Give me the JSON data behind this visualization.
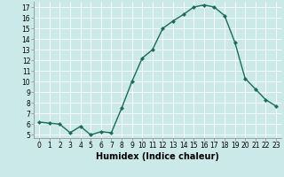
{
  "x": [
    0,
    1,
    2,
    3,
    4,
    5,
    6,
    7,
    8,
    9,
    10,
    11,
    12,
    13,
    14,
    15,
    16,
    17,
    18,
    19,
    20,
    21,
    22,
    23
  ],
  "y": [
    6.2,
    6.1,
    6.0,
    5.2,
    5.8,
    5.0,
    5.3,
    5.2,
    7.5,
    10.0,
    12.2,
    13.0,
    15.0,
    15.7,
    16.3,
    17.0,
    17.2,
    17.0,
    16.2,
    13.7,
    10.3,
    9.3,
    8.3,
    7.7
  ],
  "line_color": "#1a6b5a",
  "marker": "D",
  "marker_size": 2.0,
  "bg_color": "#cce9e9",
  "grid_color": "#ffffff",
  "xlabel": "Humidex (Indice chaleur)",
  "xlim": [
    -0.5,
    23.5
  ],
  "ylim": [
    4.7,
    17.5
  ],
  "yticks": [
    5,
    6,
    7,
    8,
    9,
    10,
    11,
    12,
    13,
    14,
    15,
    16,
    17
  ],
  "xticks": [
    0,
    1,
    2,
    3,
    4,
    5,
    6,
    7,
    8,
    9,
    10,
    11,
    12,
    13,
    14,
    15,
    16,
    17,
    18,
    19,
    20,
    21,
    22,
    23
  ],
  "tick_fontsize": 5.5,
  "xlabel_fontsize": 7.0,
  "linewidth": 1.0
}
